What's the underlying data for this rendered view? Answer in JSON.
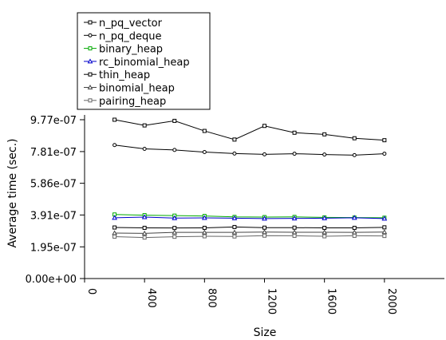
{
  "chart_data": {
    "type": "line",
    "xlabel": "Size",
    "ylabel": "Average time (sec.)",
    "xlim": [
      0,
      2400
    ],
    "ylim": [
      0,
      9.77e-07
    ],
    "x_ticks": [
      0,
      400,
      800,
      1200,
      1600,
      2000
    ],
    "y_ticks": [
      "0.00e+00",
      "1.95e-07",
      "3.91e-07",
      "5.86e-07",
      "7.81e-07",
      "9.77e-07"
    ],
    "y_tick_values": [
      0,
      1.95e-07,
      3.91e-07,
      5.86e-07,
      7.81e-07,
      9.77e-07
    ],
    "grid": false,
    "legend_position": "top-left",
    "x": [
      200,
      400,
      600,
      800,
      1000,
      1200,
      1400,
      1600,
      1800,
      2000
    ],
    "series": [
      {
        "name": "n_pq_vector",
        "color": "#000000",
        "marker": "square",
        "values": [
          9.77e-07,
          9.42e-07,
          9.7e-07,
          9.08e-07,
          8.55e-07,
          9.39e-07,
          8.97e-07,
          8.87e-07,
          8.63e-07,
          8.51e-07
        ]
      },
      {
        "name": "n_pq_deque",
        "color": "#000000",
        "marker": "circle",
        "values": [
          8.21e-07,
          7.98e-07,
          7.91e-07,
          7.78e-07,
          7.69e-07,
          7.64e-07,
          7.68e-07,
          7.63e-07,
          7.59e-07,
          7.68e-07
        ]
      },
      {
        "name": "binary_heap",
        "color": "#00aa00",
        "marker": "square",
        "values": [
          3.94e-07,
          3.9e-07,
          3.87e-07,
          3.85e-07,
          3.79e-07,
          3.78e-07,
          3.79e-07,
          3.76e-07,
          3.75e-07,
          3.74e-07
        ]
      },
      {
        "name": "rc_binomial_heap",
        "color": "#0000cc",
        "marker": "triangle",
        "values": [
          3.74e-07,
          3.78e-07,
          3.72e-07,
          3.73e-07,
          3.71e-07,
          3.69e-07,
          3.7e-07,
          3.71e-07,
          3.74e-07,
          3.69e-07
        ]
      },
      {
        "name": "thin_heap",
        "color": "#000000",
        "marker": "square",
        "values": [
          3.14e-07,
          3.12e-07,
          3.11e-07,
          3.12e-07,
          3.17e-07,
          3.13e-07,
          3.13e-07,
          3.12e-07,
          3.12e-07,
          3.15e-07
        ]
      },
      {
        "name": "binomial_heap",
        "color": "#444444",
        "marker": "triangle",
        "values": [
          2.8e-07,
          2.78e-07,
          2.84e-07,
          2.84e-07,
          2.84e-07,
          2.86e-07,
          2.85e-07,
          2.85e-07,
          2.84e-07,
          2.86e-07
        ]
      },
      {
        "name": "pairing_heap",
        "color": "#666666",
        "marker": "square",
        "values": [
          2.58e-07,
          2.52e-07,
          2.57e-07,
          2.6e-07,
          2.59e-07,
          2.64e-07,
          2.63e-07,
          2.6e-07,
          2.63e-07,
          2.62e-07
        ]
      }
    ]
  }
}
